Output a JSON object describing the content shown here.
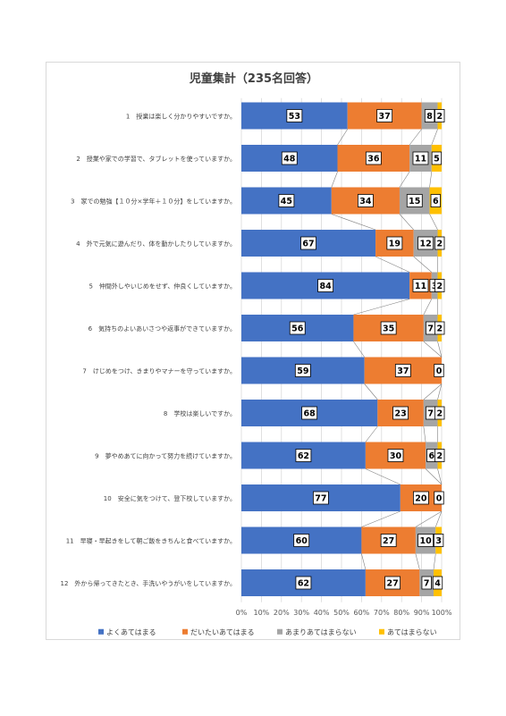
{
  "chart_data": {
    "type": "bar",
    "stacked": "percent",
    "orientation": "horizontal",
    "title": "児童集計（235名回答）",
    "categories": [
      "1　授業は楽しく分かりやすいですか。",
      "2　授業や家での学習で、タブレットを使っていますか。",
      "3　家での勉強【１０分×学年＋１０分】をしていますか。",
      "4　外で元気に遊んだり、体を動かしたりしていますか。",
      "5　仲間外しやいじめをせず、仲良くしていますか。",
      "6　気持ちのよいあいさつや返事ができていますか。",
      "7　けじめをつけ、きまりやマナーを守っていますか。",
      "8　学校は楽しいですか。",
      "9　夢やめあてに向かって努力を続けていますか。",
      "10　安全に気をつけて、登下校していますか。",
      "11　早寝・早起きをして朝ご飯をきちんと食べていますか。",
      "12　外から帰ってきたとき、手洗いやうがいをしていますか。"
    ],
    "series": [
      {
        "name": "よくあてはまる",
        "color": "#4472c4",
        "values": [
          53,
          48,
          45,
          67,
          84,
          56,
          59,
          68,
          62,
          77,
          60,
          62
        ]
      },
      {
        "name": "だいたいあてはまる",
        "color": "#ed7d31",
        "values": [
          37,
          36,
          34,
          19,
          11,
          35,
          37,
          23,
          30,
          20,
          27,
          27
        ]
      },
      {
        "name": "あまりあてはまらない",
        "color": "#a5a5a5",
        "values": [
          8,
          11,
          15,
          12,
          3,
          7,
          0,
          7,
          6,
          0,
          10,
          7
        ]
      },
      {
        "name": "あてはまらない",
        "color": "#ffc000",
        "values": [
          2,
          5,
          6,
          2,
          2,
          2,
          0,
          2,
          2,
          0,
          3,
          4
        ]
      }
    ],
    "xticks": [
      "0%",
      "10%",
      "20%",
      "30%",
      "40%",
      "50%",
      "60%",
      "70%",
      "80%",
      "90%",
      "100%"
    ],
    "xlim": [
      0,
      100
    ],
    "grid": true,
    "series_lines": true,
    "legend_position": "bottom"
  }
}
